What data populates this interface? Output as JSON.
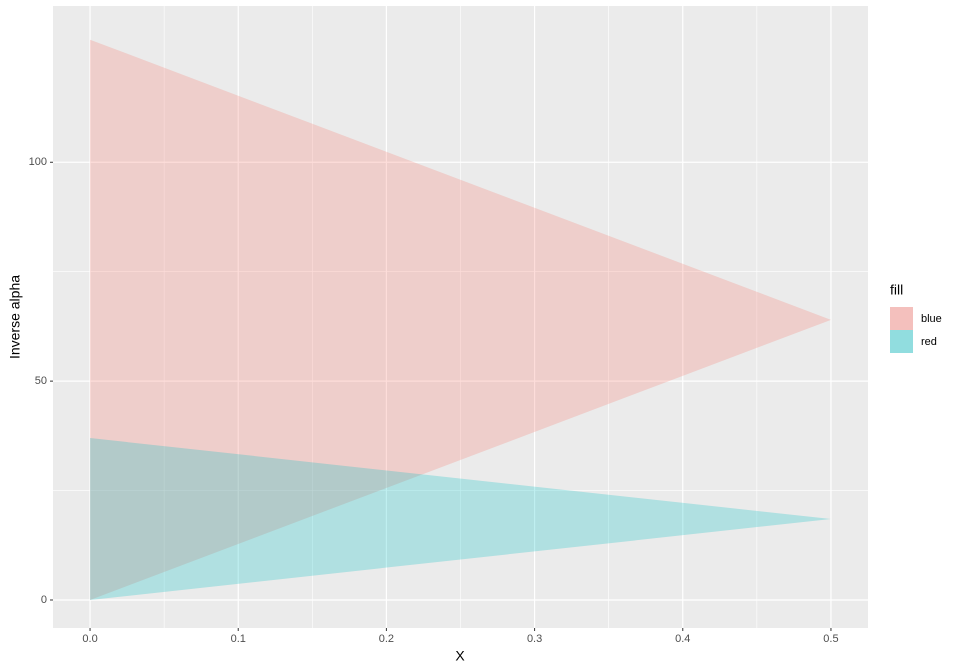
{
  "chart_data": {
    "type": "ribbon",
    "x_label": "X",
    "y_label": "Inverse alpha",
    "x": [
      0,
      0.5
    ],
    "series": [
      {
        "name": "blue",
        "color": "#F8766D",
        "ymin": [
          0,
          64
        ],
        "ymax": [
          128,
          64
        ]
      },
      {
        "name": "red",
        "color": "#00BFC4",
        "ymin": [
          0,
          18.5
        ],
        "ymax": [
          37,
          18.5
        ]
      }
    ],
    "alpha": 0.25,
    "legend_title": "fill",
    "legend": "right",
    "xlim": [
      -0.025,
      0.525
    ],
    "xticks": [
      {
        "value": 0,
        "label": "0.0"
      },
      0.1,
      0.2,
      0.3,
      0.4,
      0.5
    ],
    "ylim": [
      -6.4,
      135.7
    ],
    "yticks": [
      0,
      50,
      100
    ],
    "grid": true
  }
}
